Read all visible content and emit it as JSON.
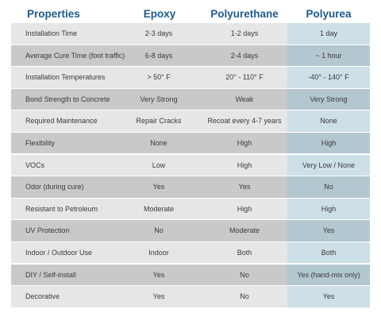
{
  "header": {
    "properties": "Properties",
    "epoxy": "Epoxy",
    "polyurethane": "Polyurethane",
    "polyurea": "Polyurea"
  },
  "rows": [
    {
      "property": "Installation Time",
      "epoxy": "2-3 days",
      "polyurethane": "1-2 days",
      "polyurea": "1 day"
    },
    {
      "property": "Average Cure Time (foot traffic)",
      "epoxy": "6-8 days",
      "polyurethane": "2-4 days",
      "polyurea": "~ 1 hour"
    },
    {
      "property": "Installation Temperatures",
      "epoxy": "> 50° F",
      "polyurethane": "20° - 110° F",
      "polyurea": "-40° - 140° F"
    },
    {
      "property": "Bond Strength to Concrete",
      "epoxy": "Very Strong",
      "polyurethane": "Weak",
      "polyurea": "Very Strong"
    },
    {
      "property": "Required Maintenance",
      "epoxy": "Repair Cracks",
      "polyurethane": "Recoat every 4-7 years",
      "polyurea": "None"
    },
    {
      "property": "Flexibility",
      "epoxy": "None",
      "polyurethane": "High",
      "polyurea": "High"
    },
    {
      "property": "VOCs",
      "epoxy": "Low",
      "polyurethane": "High",
      "polyurea": "Very Low / None"
    },
    {
      "property": "Odor (during cure)",
      "epoxy": "Yes",
      "polyurethane": "Yes",
      "polyurea": "No"
    },
    {
      "property": "Resistant to Petroleum",
      "epoxy": "Moderate",
      "polyurethane": "High",
      "polyurea": "High"
    },
    {
      "property": "UV Protection",
      "epoxy": "No",
      "polyurethane": "Moderate",
      "polyurea": "Yes"
    },
    {
      "property": "Indoor / Outdoor Use",
      "epoxy": "Indoor",
      "polyurethane": "Both",
      "polyurea": "Both"
    },
    {
      "property": "DIY / Self-install",
      "epoxy": "Yes",
      "polyurethane": "No",
      "polyurea": "Yes (hand-mix only)"
    },
    {
      "property": "Decorative",
      "epoxy": "Yes",
      "polyurethane": "No",
      "polyurea": "Yes"
    }
  ]
}
